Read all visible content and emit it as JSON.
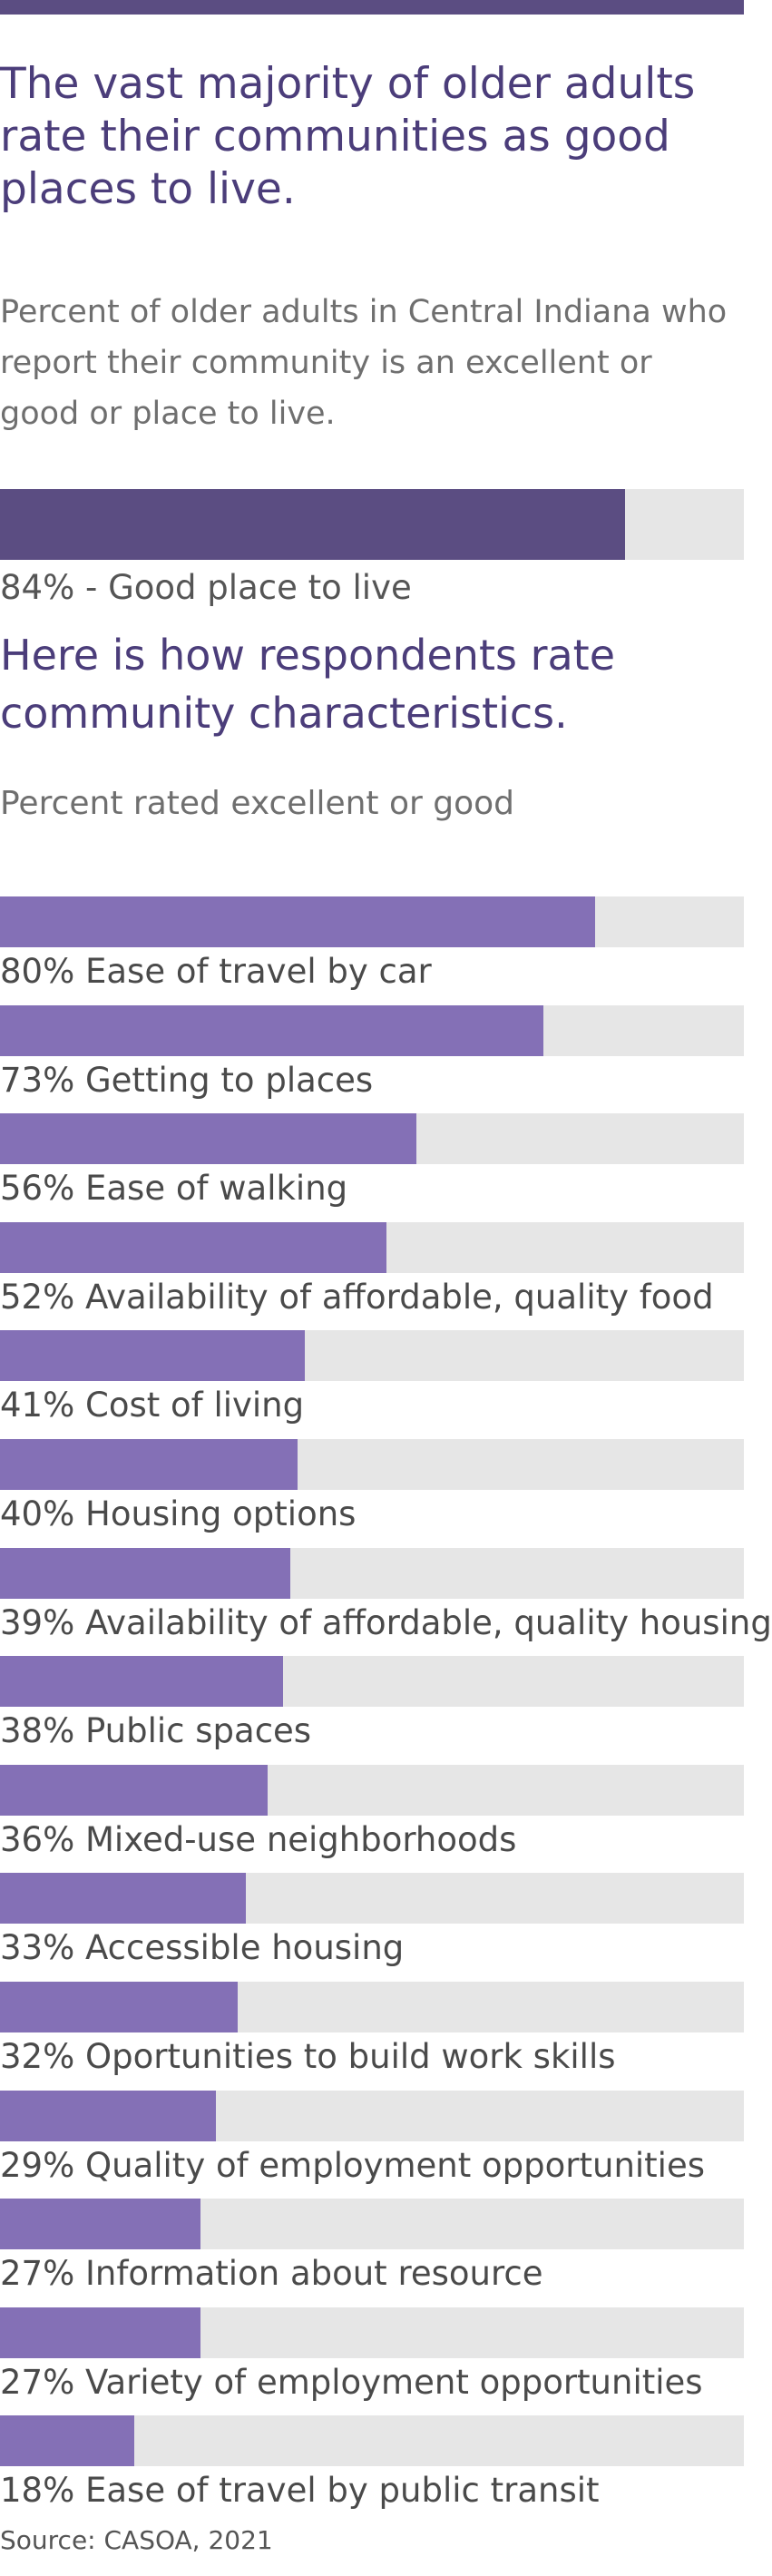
{
  "header": {
    "title": "The vast majority of older adults rate their communities as good places to live.",
    "subtitle": "Percent of older adults in Central Indiana who report their community is an excellent or good or place to live."
  },
  "summary": {
    "label": "84% - Good place to live",
    "value": 84
  },
  "section": {
    "title": "Here is how respondents rate community characteristics.",
    "subtitle": "Percent rated excellent or good"
  },
  "colors": {
    "top_bar": "#5b4d82",
    "summary_bar": "#5b4d82",
    "bar": "#8470b6",
    "track": "#e6e6e6",
    "headline": "#4b3d7a"
  },
  "chart_data": {
    "type": "bar",
    "orientation": "horizontal",
    "xlim": [
      0,
      100
    ],
    "categories": [
      "Ease of travel by car",
      "Getting to places",
      "Ease of walking",
      "Availability of affordable, quality food",
      "Cost of living",
      "Housing options",
      "Availability of affordable, quality housing",
      "Public spaces",
      "Mixed-use neighborhoods",
      "Accessible housing",
      "Oportunities to build work skills",
      "Quality of employment opportunities",
      "Information about resource",
      "Variety of employment opportunities",
      "Ease of travel by public transit"
    ],
    "values": [
      80,
      73,
      56,
      52,
      41,
      40,
      39,
      38,
      36,
      33,
      32,
      29,
      27,
      27,
      18
    ],
    "labels": [
      "80% Ease of travel by car",
      "73% Getting to places",
      "56% Ease of walking",
      "52% Availability of affordable, quality food",
      "41% Cost of living",
      "40% Housing options",
      "39% Availability of affordable, quality housing",
      "38% Public spaces",
      "36% Mixed-use neighborhoods",
      "33% Accessible housing",
      "32% Oportunities to build work skills",
      "29% Quality of employment opportunities",
      "27% Information about resource",
      "27% Variety of employment opportunities",
      "18% Ease of travel by public transit"
    ]
  },
  "source": "Source: CASOA, 2021"
}
